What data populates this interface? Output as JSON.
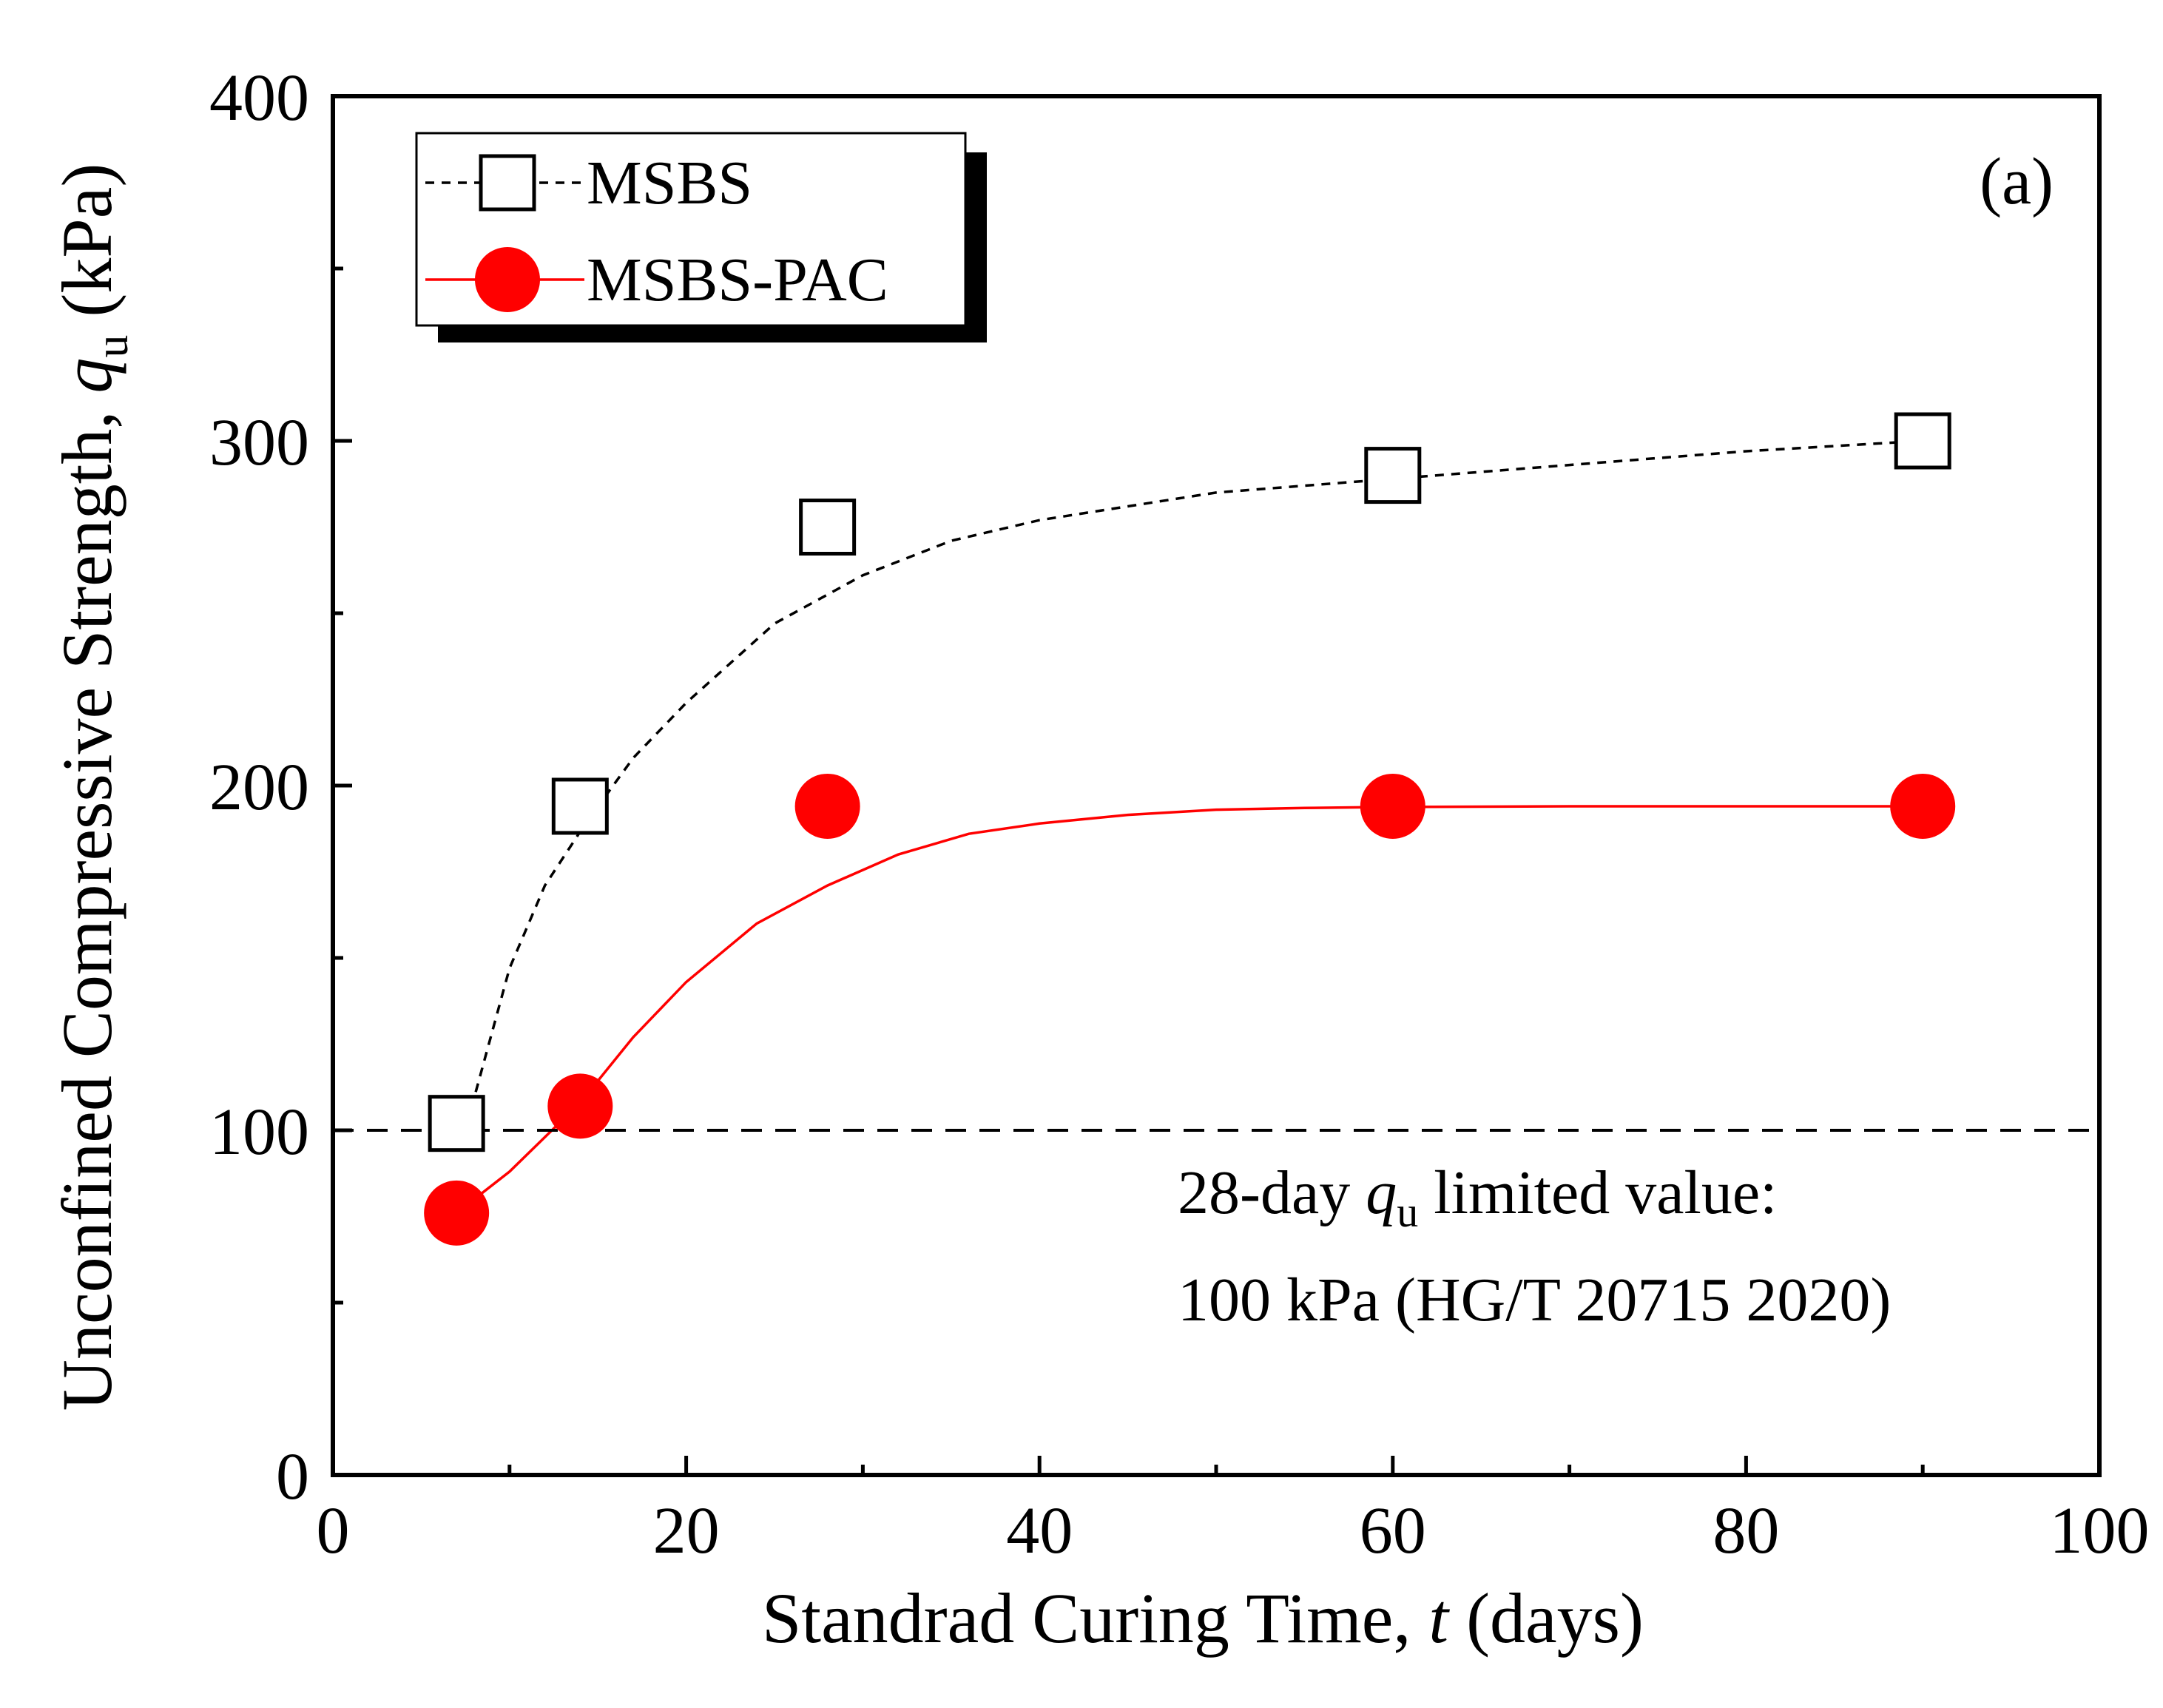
{
  "chart_data": {
    "type": "scatter",
    "panel_label": "(a)",
    "xlabel": {
      "pre": "Standrad Curing Time, ",
      "var": "t",
      "post": " (days)"
    },
    "ylabel": {
      "pre": "Unconfined Compressive Strength, ",
      "var": "q",
      "sub": "u",
      "post": " (kPa)"
    },
    "xlim": [
      0,
      100
    ],
    "ylim": [
      0,
      400
    ],
    "x_major_ticks": [
      0,
      20,
      40,
      60,
      80,
      100
    ],
    "x_minor_ticks": [
      10,
      30,
      50,
      70,
      90
    ],
    "y_major_ticks": [
      0,
      100,
      200,
      300,
      400
    ],
    "y_minor_ticks": [
      50,
      150,
      250,
      350
    ],
    "x_tick_labels": [
      "0",
      "20",
      "40",
      "60",
      "80",
      "100"
    ],
    "y_tick_labels": [
      "0",
      "100",
      "200",
      "300",
      "400"
    ],
    "series": [
      {
        "name": "MSBS",
        "marker": "open-square",
        "line_style": "dashed",
        "color": "#000000",
        "x": [
          7,
          14,
          28,
          60,
          90
        ],
        "y": [
          102,
          194,
          275,
          290,
          300
        ],
        "fit": {
          "x": [
            7.6,
            10,
            12,
            14.3,
            17,
            20,
            25,
            30,
            35,
            40,
            45,
            50,
            55,
            60,
            70,
            80,
            90
          ],
          "y": [
            102,
            147,
            171,
            189,
            208,
            224,
            247,
            261,
            271,
            277,
            281,
            285,
            287,
            289,
            293,
            297,
            300
          ]
        }
      },
      {
        "name": "MSBS-PAC",
        "marker": "filled-circle",
        "line_style": "solid",
        "color": "#ff0000",
        "x": [
          7,
          14,
          28,
          60,
          90
        ],
        "y": [
          76,
          107,
          194,
          194,
          194
        ],
        "fit": {
          "x": [
            7,
            10,
            14,
            17,
            20,
            24,
            28,
            32,
            36,
            40,
            45,
            50,
            55,
            60,
            70,
            80,
            90
          ],
          "y": [
            76,
            88,
            108,
            127,
            143,
            160,
            171,
            180,
            186,
            189,
            191.5,
            193,
            193.5,
            193.8,
            194,
            194,
            194
          ]
        }
      }
    ],
    "reference_line": {
      "y": 100,
      "style": "dashed",
      "color": "#000000"
    },
    "annotation": {
      "line1_pre": "28-day ",
      "line1_var": "q",
      "line1_sub": "u",
      "line1_post": " limited value:",
      "line2": "100 kPa (HG/T 20715 2020)"
    },
    "legend": {
      "position": "top-left",
      "entries": [
        "MSBS",
        "MSBS-PAC"
      ]
    }
  }
}
